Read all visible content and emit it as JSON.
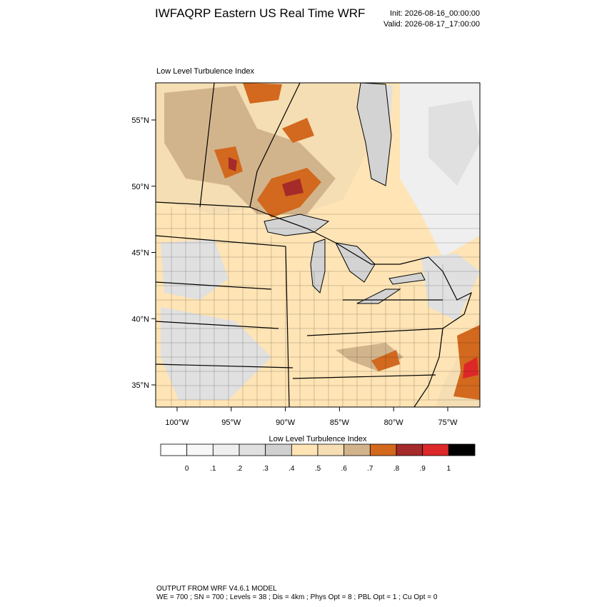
{
  "header": {
    "title": "IWFAQRP Eastern US Real Time WRF",
    "init": "Init: 2026-08-16_00:00:00",
    "valid": "Valid: 2026-08-17_17:00:00"
  },
  "map": {
    "title": "Low Level Turbulence Index",
    "lat_labels": [
      "55°N",
      "50°N",
      "45°N",
      "40°N",
      "35°N"
    ],
    "lon_labels": [
      "100°W",
      "95°W",
      "90°W",
      "85°W",
      "80°W",
      "75°W"
    ]
  },
  "colorbar": {
    "title": "Low Level Turbulence Index",
    "colors": [
      "#ffffff",
      "#f7f7f7",
      "#efefef",
      "#e0e0e0",
      "#d0d0d0",
      "#ffe4b5",
      "#f5deb3",
      "#d2b48c",
      "#d2691e",
      "#a52a2a",
      "#dc2828",
      "#000000"
    ],
    "labels": [
      "0",
      ".1",
      ".2",
      ".3",
      ".4",
      ".5",
      ".6",
      ".7",
      ".8",
      ".9",
      "1"
    ]
  },
  "footer": {
    "line1": "OUTPUT FROM WRF V4.6.1 MODEL",
    "line2": "WE = 700 ; SN = 700 ; Levels = 38 ; Dis = 4km ; Phys Opt = 8 ; PBL Opt = 1 ; Cu Opt = 0"
  }
}
